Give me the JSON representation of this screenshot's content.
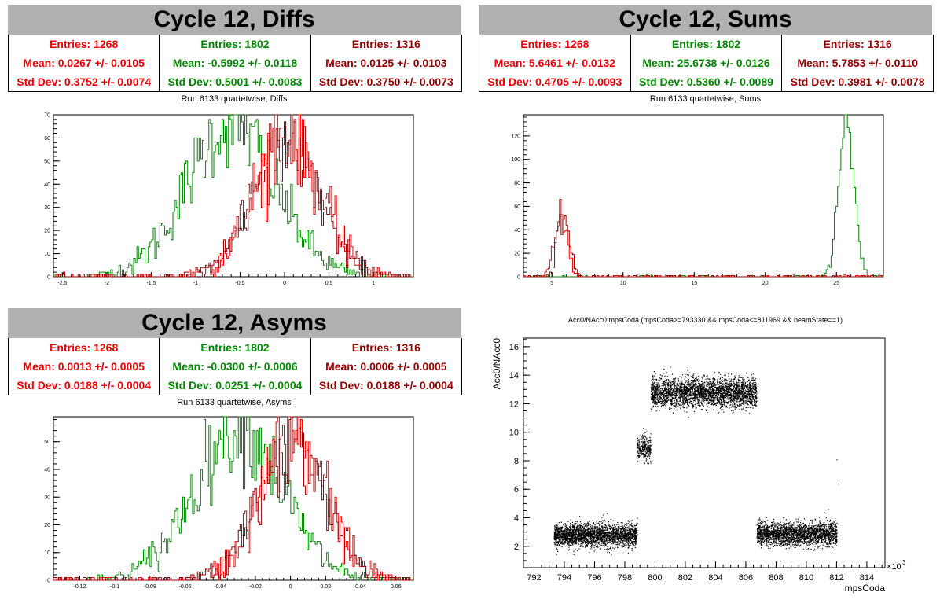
{
  "panels": {
    "diffs": {
      "title": "Cycle 12, Diffs",
      "run_label": "Run 6133 quartetwise, Diffs",
      "stats": [
        {
          "entries": "Entries: 1268",
          "mean": "Mean: 0.0267 +/- 0.0105",
          "std": "Std Dev: 0.3752 +/- 0.0074",
          "color": "#ee0000"
        },
        {
          "entries": "Entries: 1802",
          "mean": "Mean: -0.5992 +/- 0.0118",
          "std": "Std Dev: 0.5001 +/- 0.0083",
          "color": "#008800"
        },
        {
          "entries": "Entries: 1316",
          "mean": "Mean: 0.0125 +/- 0.0103",
          "std": "Std Dev: 0.3750 +/- 0.0073",
          "color": "#990000"
        }
      ]
    },
    "sums": {
      "title": "Cycle 12, Sums",
      "run_label": "Run 6133 quartetwise, Sums",
      "stats": [
        {
          "entries": "Entries: 1268",
          "mean": "Mean: 5.6461 +/- 0.0132",
          "std": "Std Dev: 0.4705 +/- 0.0093",
          "color": "#ee0000"
        },
        {
          "entries": "Entries: 1802",
          "mean": "Mean: 25.6738 +/- 0.0126",
          "std": "Std Dev: 0.5360 +/- 0.0089",
          "color": "#008800"
        },
        {
          "entries": "Entries: 1316",
          "mean": "Mean: 5.7853 +/- 0.0110",
          "std": "Std Dev: 0.3981 +/- 0.0078",
          "color": "#990000"
        }
      ]
    },
    "asyms": {
      "title": "Cycle 12, Asyms",
      "run_label": "Run 6133 quartetwise, Asyms",
      "stats": [
        {
          "entries": "Entries: 1268",
          "mean": "Mean: 0.0013 +/- 0.0005",
          "std": "Std Dev: 0.0188 +/- 0.0004",
          "color": "#ee0000"
        },
        {
          "entries": "Entries: 1802",
          "mean": "Mean: -0.0300 +/- 0.0006",
          "std": "Std Dev: 0.0251 +/- 0.0004",
          "color": "#008800"
        },
        {
          "entries": "Entries: 1316",
          "mean": "Mean: 0.0006 +/- 0.0005",
          "std": "Std Dev: 0.0188 +/- 0.0004",
          "color": "#990000"
        }
      ]
    },
    "scatter": {
      "title": "Acc0/NAcc0:mpsCoda (mpsCoda>=793330 && mpsCoda<=811969 && beamState==1)"
    }
  },
  "chart_data": [
    {
      "type": "histogram",
      "name": "diffs",
      "xlim": [
        -2.6,
        1.45
      ],
      "ylim": [
        0,
        70
      ],
      "xticks": [
        -2.5,
        -2,
        -1.5,
        -1,
        -0.5,
        0,
        0.5,
        1
      ],
      "xtick_labels": [
        "-2.5",
        "-2",
        "-1.5",
        "-1",
        "-0.5",
        "0",
        "0.5",
        "1"
      ],
      "yticks": [
        0,
        10,
        20,
        30,
        40,
        50,
        60,
        70
      ],
      "series": [
        {
          "color": "#008800",
          "mean": -0.5992,
          "std": 0.5001,
          "peak": 66,
          "entries": 1802
        },
        {
          "color": "#ee0000",
          "mean": 0.0267,
          "std": 0.3752,
          "peak": 61,
          "entries": 1268
        },
        {
          "color": "#990000",
          "mean": 0.0125,
          "std": 0.375,
          "peak": 59,
          "entries": 1316
        }
      ]
    },
    {
      "type": "histogram",
      "name": "sums",
      "xlim": [
        3.0,
        28.3
      ],
      "ylim": [
        0,
        138
      ],
      "xticks": [
        5,
        10,
        15,
        20,
        25
      ],
      "xtick_labels": [
        "5",
        "10",
        "15",
        "20",
        "25"
      ],
      "yticks": [
        0,
        20,
        40,
        60,
        80,
        100,
        120
      ],
      "series": [
        {
          "color": "#008800",
          "mean": 25.6738,
          "std": 0.536,
          "peak": 130,
          "entries": 1802
        },
        {
          "color": "#ee0000",
          "mean": 5.6461,
          "std": 0.4705,
          "peak": 48,
          "entries": 1268
        },
        {
          "color": "#990000",
          "mean": 5.7853,
          "std": 0.3981,
          "peak": 55,
          "entries": 1316
        }
      ]
    },
    {
      "type": "histogram",
      "name": "asyms",
      "xlim": [
        -0.135,
        0.07
      ],
      "ylim": [
        0,
        59
      ],
      "xticks": [
        -0.12,
        -0.1,
        -0.08,
        -0.06,
        -0.04,
        -0.02,
        0,
        0.02,
        0.04,
        0.06
      ],
      "xtick_labels": [
        "-0.12",
        "-0.1",
        "-0.08",
        "-0.06",
        "-0.04",
        "-0.02",
        "0",
        "0.02",
        "0.04",
        "0.06"
      ],
      "yticks": [
        0,
        10,
        20,
        30,
        40,
        50
      ],
      "series": [
        {
          "color": "#008800",
          "mean": -0.03,
          "std": 0.0251,
          "peak": 55,
          "entries": 1802
        },
        {
          "color": "#ee0000",
          "mean": 0.0013,
          "std": 0.0188,
          "peak": 52,
          "entries": 1268
        },
        {
          "color": "#990000",
          "mean": 0.0006,
          "std": 0.0188,
          "peak": 50,
          "entries": 1316
        }
      ]
    },
    {
      "type": "scatter",
      "name": "acc0-vs-mpscoda",
      "xlabel": "mpsCoda",
      "ylabel": "Acc0/NAcc0",
      "x_exponent": "×10",
      "x_exponent_power": "3",
      "xlim": [
        791.3,
        815.2
      ],
      "ylim": [
        0.5,
        16.6
      ],
      "xticks": [
        792,
        794,
        796,
        798,
        800,
        802,
        804,
        806,
        808,
        810,
        812,
        814
      ],
      "xtick_labels": [
        "792",
        "794",
        "796",
        "798",
        "800",
        "802",
        "804",
        "806",
        "808",
        "810",
        "812",
        "814"
      ],
      "yticks": [
        2,
        4,
        6,
        8,
        10,
        12,
        14,
        16
      ],
      "ytick_labels": [
        "2",
        "4",
        "6",
        "8",
        "10",
        "12",
        "14",
        "16"
      ],
      "clusters": [
        {
          "x": [
            793.3,
            798.8
          ],
          "y_center": 2.8,
          "y_spread": 0.4,
          "count": 2600
        },
        {
          "x": [
            798.8,
            799.7
          ],
          "y_center": 8.9,
          "y_spread": 0.45,
          "count": 300
        },
        {
          "x": [
            799.7,
            806.7
          ],
          "y_center": 12.8,
          "y_spread": 0.5,
          "count": 3200
        },
        {
          "x": [
            806.7,
            812.0
          ],
          "y_center": 2.9,
          "y_spread": 0.4,
          "count": 2400
        }
      ]
    }
  ]
}
